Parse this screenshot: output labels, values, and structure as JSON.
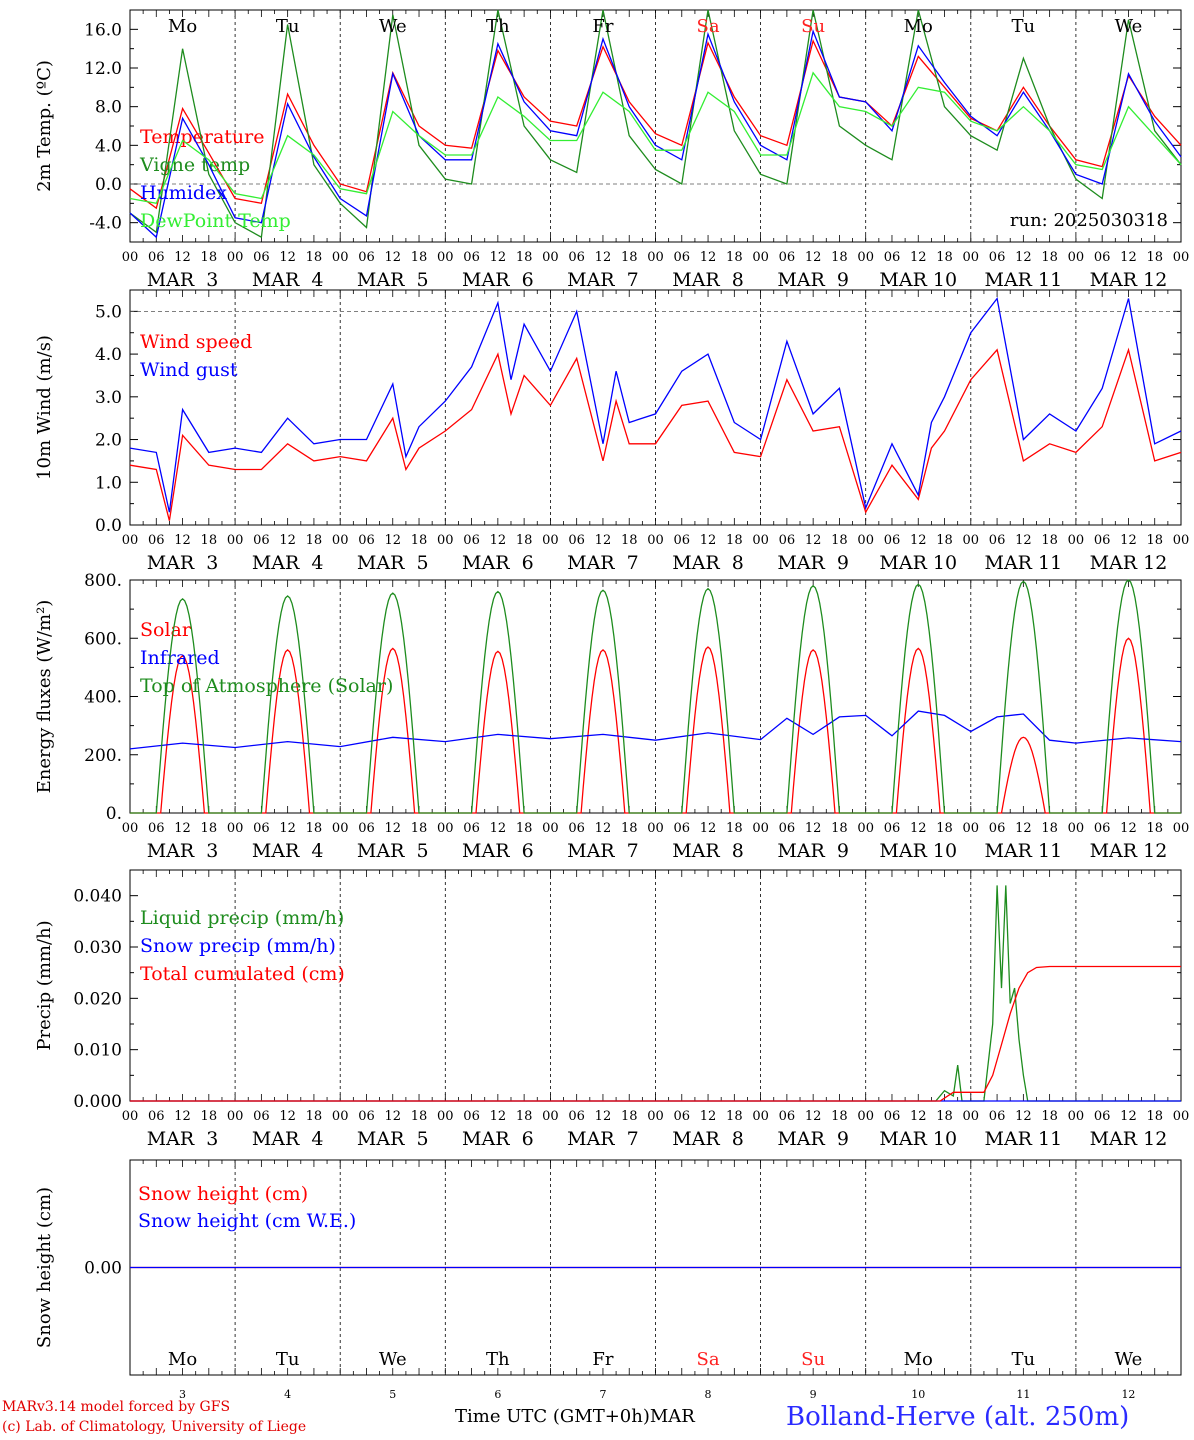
{
  "run_label": "run: 2025030318",
  "footer": {
    "credit_model": "MARv3.14 model forced by GFS",
    "credit_lab": "(c) Lab. of Climatology, University of Liege",
    "x_axis_label": "Time UTC (GMT+0h)",
    "month_label": "MAR",
    "station": "Bolland-Herve (alt. 250m)"
  },
  "days": {
    "weekdays": [
      "Mo",
      "Tu",
      "We",
      "Th",
      "Fr",
      "Sa",
      "Su",
      "Mo",
      "Tu",
      "We"
    ],
    "weekend_color": "#ff2020",
    "dates": [
      "MAR  3",
      "MAR  4",
      "MAR  5",
      "MAR  6",
      "MAR  7",
      "MAR  8",
      "MAR  9",
      "MAR 10",
      "MAR 11",
      "MAR 12"
    ],
    "date_numbers": [
      "3",
      "4",
      "5",
      "6",
      "7",
      "8",
      "9",
      "10",
      "11",
      "12"
    ],
    "hour_ticks": [
      "00",
      "06",
      "12",
      "18"
    ],
    "end_tick": "00"
  },
  "chart_data": [
    {
      "type": "line",
      "ylabel": "2m Temp. (ºC)",
      "ylim": [
        -6,
        18
      ],
      "yticks": [
        "-4.0",
        "0.0",
        "4.0",
        "8.0",
        "12.0",
        "16.0"
      ],
      "reference_line": 0,
      "x_unit": "hours since MAR 3 00 UTC",
      "series": [
        {
          "name": "Temperature",
          "color": "#ff0000",
          "x": [
            0,
            6,
            12,
            18,
            24,
            30,
            36,
            42,
            48,
            54,
            60,
            66,
            72,
            78,
            84,
            90,
            96,
            102,
            108,
            114,
            120,
            126,
            132,
            138,
            144,
            150,
            156,
            162,
            168,
            174,
            180,
            186,
            192,
            198,
            204,
            210,
            216,
            222,
            228,
            234,
            240
          ],
          "y": [
            -0.5,
            -2.5,
            7.8,
            3.2,
            -1.5,
            -2.0,
            9.3,
            4.0,
            0.0,
            -0.8,
            11.5,
            6.0,
            4.0,
            3.7,
            13.8,
            9.0,
            6.5,
            6.0,
            14.2,
            8.5,
            5.2,
            4.0,
            14.6,
            9.0,
            5.0,
            4.0,
            14.8,
            9.0,
            8.5,
            6.0,
            13.2,
            10.0,
            6.8,
            5.5,
            10.0,
            6.0,
            2.5,
            1.8,
            11.2,
            7.0,
            4.0
          ]
        },
        {
          "name": "Vigne temp",
          "color": "#1e8c1e",
          "x": [
            0,
            6,
            12,
            18,
            24,
            30,
            36,
            42,
            48,
            54,
            60,
            66,
            72,
            78,
            84,
            90,
            96,
            102,
            108,
            114,
            120,
            126,
            132,
            138,
            144,
            150,
            156,
            162,
            168,
            174,
            180,
            186,
            192,
            198,
            204,
            210,
            216,
            222,
            228,
            234,
            240
          ],
          "y": [
            -3.0,
            -5.0,
            14.0,
            1.0,
            -4.0,
            -5.5,
            16.5,
            2.0,
            -2.0,
            -4.5,
            17.5,
            4.0,
            0.5,
            0.0,
            18.0,
            6.0,
            2.5,
            1.2,
            18.0,
            5.0,
            1.5,
            0.0,
            18.0,
            5.5,
            1.0,
            0.0,
            18.0,
            6.0,
            4.0,
            2.5,
            18.0,
            8.0,
            5.0,
            3.5,
            13.0,
            6.0,
            0.5,
            -1.5,
            17.0,
            5.5,
            2.0
          ]
        },
        {
          "name": "Humidex",
          "color": "#0000ff",
          "x": [
            0,
            6,
            12,
            18,
            24,
            30,
            36,
            42,
            48,
            54,
            60,
            66,
            72,
            78,
            84,
            90,
            96,
            102,
            108,
            114,
            120,
            126,
            132,
            138,
            144,
            150,
            156,
            162,
            168,
            174,
            180,
            186,
            192,
            198,
            204,
            210,
            216,
            222,
            228,
            234,
            240
          ],
          "y": [
            -3.0,
            -5.5,
            6.8,
            2.0,
            -3.5,
            -4.0,
            8.3,
            2.8,
            -1.5,
            -3.3,
            11.4,
            5.0,
            2.5,
            2.5,
            14.5,
            8.5,
            5.5,
            5.0,
            15.0,
            8.0,
            4.0,
            2.5,
            15.5,
            8.5,
            4.0,
            2.5,
            15.8,
            9.0,
            8.5,
            5.5,
            14.3,
            10.5,
            7.0,
            5.0,
            9.5,
            5.5,
            1.0,
            0.0,
            11.4,
            6.5,
            2.8
          ]
        },
        {
          "name": "DewPoint Temp",
          "color": "#33ee33",
          "x": [
            0,
            6,
            12,
            18,
            24,
            30,
            36,
            42,
            48,
            54,
            60,
            66,
            72,
            78,
            84,
            90,
            96,
            102,
            108,
            114,
            120,
            126,
            132,
            138,
            144,
            150,
            156,
            162,
            168,
            174,
            180,
            186,
            192,
            198,
            204,
            210,
            216,
            222,
            228,
            234,
            240
          ],
          "y": [
            -1.5,
            -2.0,
            4.5,
            2.5,
            -1.0,
            -1.5,
            5.0,
            3.0,
            -0.5,
            -1.0,
            7.5,
            5.0,
            3.0,
            3.0,
            9.0,
            7.0,
            4.5,
            4.5,
            9.5,
            7.5,
            3.5,
            3.5,
            9.5,
            7.5,
            3.0,
            3.0,
            11.5,
            8.0,
            7.5,
            6.0,
            10.0,
            9.5,
            6.5,
            5.5,
            8.0,
            5.5,
            2.0,
            1.5,
            8.0,
            5.0,
            2.0
          ]
        }
      ]
    },
    {
      "type": "line",
      "ylabel": "10m Wind (m/s)",
      "ylim": [
        0,
        5.5
      ],
      "yticks": [
        "0.0",
        "1.0",
        "2.0",
        "3.0",
        "4.0",
        "5.0"
      ],
      "reference_line": 5.0,
      "x_unit": "hours since MAR 3 00 UTC",
      "series": [
        {
          "name": "Wind speed",
          "color": "#ff0000",
          "x": [
            0,
            6,
            9,
            12,
            18,
            24,
            30,
            36,
            42,
            48,
            54,
            60,
            63,
            66,
            72,
            78,
            84,
            87,
            90,
            96,
            102,
            108,
            111,
            114,
            120,
            126,
            132,
            138,
            144,
            150,
            156,
            162,
            168,
            174,
            180,
            183,
            186,
            192,
            198,
            204,
            210,
            216,
            222,
            228,
            234,
            240
          ],
          "y": [
            1.4,
            1.3,
            0.1,
            2.1,
            1.4,
            1.3,
            1.3,
            1.9,
            1.5,
            1.6,
            1.5,
            2.5,
            1.3,
            1.8,
            2.2,
            2.7,
            4.0,
            2.6,
            3.5,
            2.8,
            3.9,
            1.5,
            2.9,
            1.9,
            1.9,
            2.8,
            2.9,
            1.7,
            1.6,
            3.4,
            2.2,
            2.3,
            0.3,
            1.4,
            0.6,
            1.8,
            2.2,
            3.4,
            4.1,
            1.5,
            1.9,
            1.7,
            2.3,
            4.1,
            1.5,
            1.7
          ]
        },
        {
          "name": "Wind gust",
          "color": "#0000ff",
          "x": [
            0,
            6,
            9,
            12,
            18,
            24,
            30,
            36,
            42,
            48,
            54,
            60,
            63,
            66,
            72,
            78,
            84,
            87,
            90,
            96,
            102,
            108,
            111,
            114,
            120,
            126,
            132,
            138,
            144,
            150,
            156,
            162,
            168,
            174,
            180,
            183,
            186,
            192,
            198,
            204,
            210,
            216,
            222,
            228,
            234,
            240
          ],
          "y": [
            1.8,
            1.7,
            0.3,
            2.7,
            1.7,
            1.8,
            1.7,
            2.5,
            1.9,
            2.0,
            2.0,
            3.3,
            1.6,
            2.3,
            2.9,
            3.7,
            5.2,
            3.4,
            4.7,
            3.6,
            5.0,
            1.9,
            3.6,
            2.4,
            2.6,
            3.6,
            4.0,
            2.4,
            2.0,
            4.3,
            2.6,
            3.2,
            0.4,
            1.9,
            0.7,
            2.4,
            3.0,
            4.5,
            5.3,
            2.0,
            2.6,
            2.2,
            3.2,
            5.3,
            1.9,
            2.2
          ]
        }
      ]
    },
    {
      "type": "line",
      "ylabel": "Energy fluxes (W/m²)",
      "ylim": [
        0,
        800
      ],
      "yticks": [
        "0.",
        "200.",
        "400.",
        "600.",
        "800."
      ],
      "x_unit": "hours since MAR 3 00 UTC",
      "series": [
        {
          "name": "Solar",
          "color": "#ff0000",
          "peaks": [
            {
              "hour": 12,
              "value": 540
            },
            {
              "hour": 36,
              "value": 560
            },
            {
              "hour": 60,
              "value": 565
            },
            {
              "hour": 84,
              "value": 555
            },
            {
              "hour": 108,
              "value": 560
            },
            {
              "hour": 132,
              "value": 570
            },
            {
              "hour": 156,
              "value": 560
            },
            {
              "hour": 180,
              "value": 565
            },
            {
              "hour": 204,
              "value": 260
            },
            {
              "hour": 228,
              "value": 600
            }
          ],
          "half_width_hours": 5
        },
        {
          "name": "Infrared",
          "color": "#0000ff",
          "x": [
            0,
            12,
            24,
            36,
            48,
            60,
            72,
            84,
            96,
            108,
            120,
            132,
            144,
            150,
            156,
            162,
            168,
            174,
            180,
            186,
            192,
            198,
            204,
            210,
            216,
            228,
            240
          ],
          "y": [
            220,
            240,
            225,
            245,
            228,
            260,
            245,
            270,
            255,
            270,
            250,
            275,
            252,
            325,
            270,
            330,
            335,
            265,
            350,
            335,
            280,
            330,
            340,
            250,
            240,
            258,
            245
          ]
        },
        {
          "name": "Top of Atmosphere (Solar)",
          "color": "#1e8c1e",
          "peaks": [
            {
              "hour": 12,
              "value": 735
            },
            {
              "hour": 36,
              "value": 745
            },
            {
              "hour": 60,
              "value": 755
            },
            {
              "hour": 84,
              "value": 760
            },
            {
              "hour": 108,
              "value": 765
            },
            {
              "hour": 132,
              "value": 770
            },
            {
              "hour": 156,
              "value": 780
            },
            {
              "hour": 180,
              "value": 785
            },
            {
              "hour": 204,
              "value": 795
            },
            {
              "hour": 228,
              "value": 800
            }
          ],
          "half_width_hours": 6
        }
      ]
    },
    {
      "type": "line",
      "ylabel": "Precip (mm/h)",
      "ylim": [
        0,
        0.045
      ],
      "yticks": [
        "0.000",
        "0.010",
        "0.020",
        "0.030",
        "0.040"
      ],
      "x_unit": "hours since MAR 3 00 UTC",
      "series": [
        {
          "name": "Liquid precip (mm/h)",
          "color": "#1e8c1e",
          "x": [
            0,
            184,
            186,
            188,
            189,
            190,
            192,
            195,
            197,
            198,
            199,
            200,
            201,
            202,
            203,
            204,
            205,
            207,
            209,
            240
          ],
          "y": [
            0,
            0,
            0.002,
            0.001,
            0.007,
            0,
            0,
            0,
            0.015,
            0.042,
            0.022,
            0.042,
            0.019,
            0.022,
            0.012,
            0.005,
            0,
            0,
            0,
            0
          ]
        },
        {
          "name": "Snow precip (mm/h)",
          "color": "#0000ff",
          "x": [
            0,
            240
          ],
          "y": [
            0,
            0
          ]
        },
        {
          "name": "Total cumulated (cm)",
          "color": "#ff0000",
          "x": [
            0,
            185,
            188,
            195,
            197,
            199,
            201,
            203,
            205,
            207,
            210,
            240
          ],
          "y": [
            0,
            0,
            0.0017,
            0.0017,
            0.005,
            0.011,
            0.017,
            0.022,
            0.025,
            0.026,
            0.0262,
            0.0262
          ]
        }
      ]
    },
    {
      "type": "line",
      "ylabel": "Snow height (cm)",
      "ylim": [
        -1,
        1
      ],
      "yticks": [
        "0.00"
      ],
      "x_unit": "hours since MAR 3 00 UTC",
      "series": [
        {
          "name": "Snow height (cm)",
          "color": "#ff0000",
          "x": [
            0,
            240
          ],
          "y": [
            0,
            0
          ]
        },
        {
          "name": "Snow height (cm W.E.)",
          "color": "#0000ff",
          "x": [
            0,
            240
          ],
          "y": [
            0,
            0
          ]
        }
      ]
    }
  ]
}
